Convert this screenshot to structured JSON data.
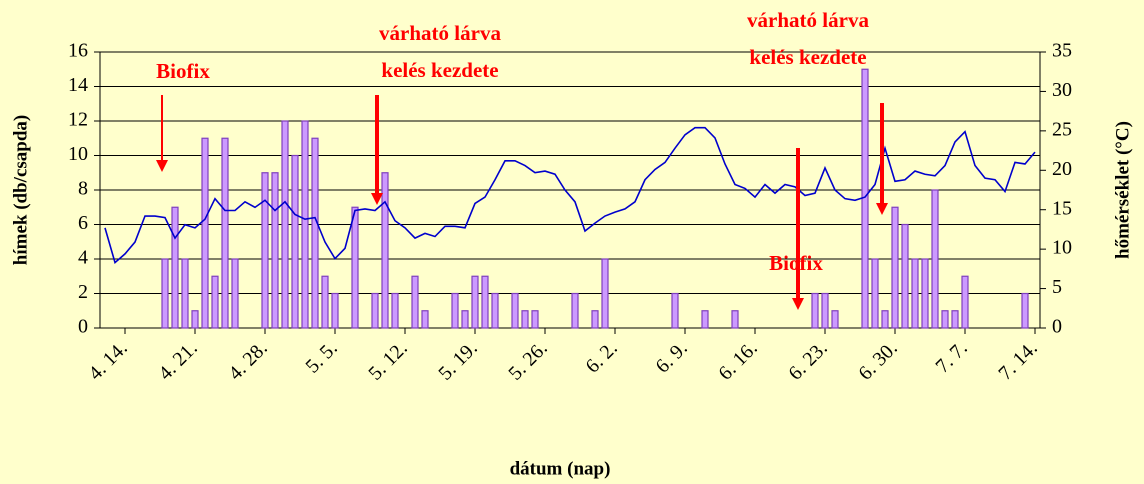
{
  "chart_data": {
    "type": "bar",
    "xlabel": "dátum (nap)",
    "ylabel": "hímek (db/csapda)",
    "y2label": "hőmérséklet (°C)",
    "annotations": [
      [
        "Biofix"
      ],
      [
        "várható lárva",
        "kelés kezdete"
      ],
      [
        "várható lárva",
        "kelés kezdete"
      ],
      [
        "Biofix"
      ]
    ],
    "categories": [
      null,
      null,
      "4. 14.",
      null,
      null,
      null,
      null,
      null,
      null,
      "4. 21.",
      null,
      null,
      null,
      null,
      null,
      null,
      "4. 28.",
      null,
      null,
      null,
      null,
      null,
      null,
      "5. 5.",
      null,
      null,
      null,
      null,
      null,
      null,
      "5. 12.",
      null,
      null,
      null,
      null,
      null,
      null,
      "5. 19.",
      null,
      null,
      null,
      null,
      null,
      null,
      "5. 26.",
      null,
      null,
      null,
      null,
      null,
      null,
      "6. 2.",
      null,
      null,
      null,
      null,
      null,
      null,
      "6. 9.",
      null,
      null,
      null,
      null,
      null,
      null,
      "6. 16.",
      null,
      null,
      null,
      null,
      null,
      null,
      "6. 23.",
      null,
      null,
      null,
      null,
      null,
      null,
      "6. 30.",
      null,
      null,
      null,
      null,
      null,
      null,
      "7. 7.",
      null,
      null,
      null,
      null,
      null,
      null,
      "7. 14."
    ],
    "series": [
      {
        "name": "hímek",
        "color": "#cc99ff",
        "values": [
          0,
          0,
          0,
          0,
          0,
          0,
          4,
          7,
          4,
          1,
          11,
          3,
          11,
          4,
          0,
          0,
          9,
          9,
          12,
          10,
          12,
          11,
          3,
          2,
          0,
          7,
          0,
          2,
          9,
          2,
          0,
          3,
          1,
          0,
          0,
          2,
          1,
          3,
          3,
          2,
          0,
          2,
          1,
          1,
          0,
          0,
          0,
          2,
          0,
          1,
          4,
          0,
          0,
          0,
          0,
          0,
          0,
          2,
          0,
          0,
          1,
          0,
          0,
          1,
          0,
          0,
          0,
          0,
          0,
          0,
          0,
          2,
          2,
          1,
          0,
          0,
          15,
          4,
          1,
          7,
          6,
          4,
          4,
          8,
          1,
          1,
          3,
          0,
          0,
          0,
          0,
          0,
          2,
          0
        ]
      },
      {
        "name": "hőmérséklet",
        "color": "#0000cc",
        "axis": "y2",
        "values": [
          12.7,
          8.3,
          9.4,
          10.9,
          14.2,
          14.2,
          14,
          11.4,
          13.1,
          12.7,
          13.8,
          16.4,
          14.9,
          14.9,
          16,
          15.3,
          16.2,
          14.9,
          16,
          14.4,
          13.8,
          14,
          10.9,
          8.8,
          10.1,
          14.9,
          15.1,
          14.9,
          16,
          13.6,
          12.7,
          11.4,
          12,
          11.6,
          12.9,
          12.9,
          12.7,
          15.8,
          16.6,
          18.8,
          21.2,
          21.2,
          20.6,
          19.7,
          19.9,
          19.5,
          17.5,
          16,
          12.3,
          13.3,
          14.2,
          14.7,
          15.1,
          16,
          18.8,
          20.1,
          21,
          22.8,
          24.5,
          25.4,
          25.4,
          24.1,
          20.8,
          18.2,
          17.7,
          16.6,
          18.2,
          17.1,
          18.2,
          17.9,
          16.8,
          17.1,
          20.3,
          17.5,
          16.4,
          16.2,
          16.6,
          18.2,
          22.8,
          18.6,
          18.8,
          19.9,
          19.5,
          19.3,
          20.6,
          23.6,
          24.9,
          20.6,
          19,
          18.8,
          17.3,
          21,
          20.8,
          22.3
        ]
      }
    ],
    "ylim": [
      0,
      16
    ],
    "yticks": [
      0,
      2,
      4,
      6,
      8,
      10,
      12,
      14,
      16
    ],
    "y2lim": [
      0,
      35
    ],
    "y2ticks": [
      0,
      5,
      10,
      15,
      20,
      25,
      30,
      35
    ],
    "grid": true
  }
}
